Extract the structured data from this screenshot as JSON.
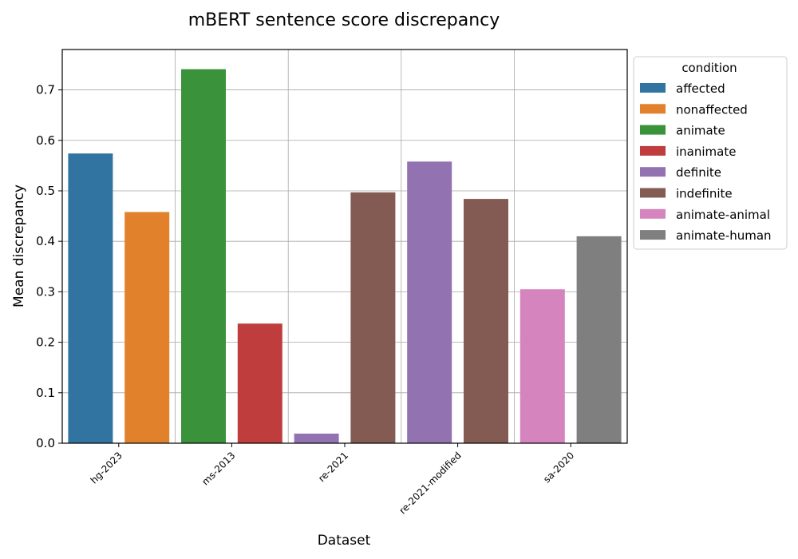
{
  "chart_data": {
    "type": "bar",
    "title": "mBERT sentence score discrepancy",
    "xlabel": "Dataset",
    "ylabel": "Mean discrepancy",
    "ylim": [
      0,
      0.78
    ],
    "yticks": [
      0.0,
      0.1,
      0.2,
      0.3,
      0.4,
      0.5,
      0.6,
      0.7
    ],
    "grid": true,
    "legend": {
      "title": "condition",
      "placement": "outside-right",
      "entries": [
        {
          "label": "affected",
          "color": "#3274a1"
        },
        {
          "label": "nonaffected",
          "color": "#e1812c"
        },
        {
          "label": "animate",
          "color": "#3a923a"
        },
        {
          "label": "inanimate",
          "color": "#c03d3e"
        },
        {
          "label": "definite",
          "color": "#9372b2"
        },
        {
          "label": "indefinite",
          "color": "#845b53"
        },
        {
          "label": "animate-animal",
          "color": "#d684bd"
        },
        {
          "label": "animate-human",
          "color": "#7f7f7f"
        }
      ]
    },
    "categories": [
      "hg-2023",
      "ms-2013",
      "re-2021",
      "re-2021-modified",
      "sa-2020"
    ],
    "bars": [
      {
        "category": "hg-2023",
        "condition": "affected",
        "value": 0.574
      },
      {
        "category": "hg-2023",
        "condition": "nonaffected",
        "value": 0.458
      },
      {
        "category": "ms-2013",
        "condition": "animate",
        "value": 0.741
      },
      {
        "category": "ms-2013",
        "condition": "inanimate",
        "value": 0.237
      },
      {
        "category": "re-2021",
        "condition": "definite",
        "value": 0.019
      },
      {
        "category": "re-2021",
        "condition": "indefinite",
        "value": 0.497
      },
      {
        "category": "re-2021-modified",
        "condition": "definite",
        "value": 0.558
      },
      {
        "category": "re-2021-modified",
        "condition": "indefinite",
        "value": 0.484
      },
      {
        "category": "sa-2020",
        "condition": "animate-animal",
        "value": 0.305
      },
      {
        "category": "sa-2020",
        "condition": "animate-human",
        "value": 0.41
      }
    ]
  }
}
